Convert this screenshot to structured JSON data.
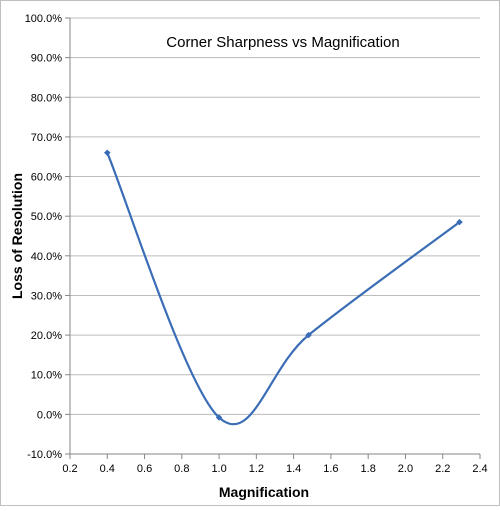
{
  "chart_data": {
    "type": "line",
    "title": "Corner Sharpness vs Magnification",
    "xlabel": "Magnification",
    "ylabel": "Loss of Resolution",
    "xlim": [
      0.2,
      2.4
    ],
    "ylim": [
      -10,
      100
    ],
    "x_ticks": [
      0.2,
      0.4,
      0.6,
      0.8,
      1.0,
      1.2,
      1.4,
      1.6,
      1.8,
      2.0,
      2.2,
      2.4
    ],
    "x_tick_labels": [
      "0.2",
      "0.4",
      "0.6",
      "0.8",
      "1.0",
      "1.2",
      "1.4",
      "1.6",
      "1.8",
      "2.0",
      "2.2",
      "2.4"
    ],
    "y_ticks": [
      -10,
      0,
      10,
      20,
      30,
      40,
      50,
      60,
      70,
      80,
      90,
      100
    ],
    "y_tick_labels": [
      "-10.0%",
      "0.0%",
      "10.0%",
      "20.0%",
      "30.0%",
      "40.0%",
      "50.0%",
      "60.0%",
      "70.0%",
      "80.0%",
      "90.0%",
      "100.0%"
    ],
    "grid": "horizontal",
    "smoothed": true,
    "series": [
      {
        "color": "#3a6db5",
        "marker": "diamond",
        "x": [
          0.4,
          1.0,
          1.48,
          2.29
        ],
        "y": [
          66.0,
          -0.8,
          20.0,
          48.5
        ]
      }
    ]
  }
}
